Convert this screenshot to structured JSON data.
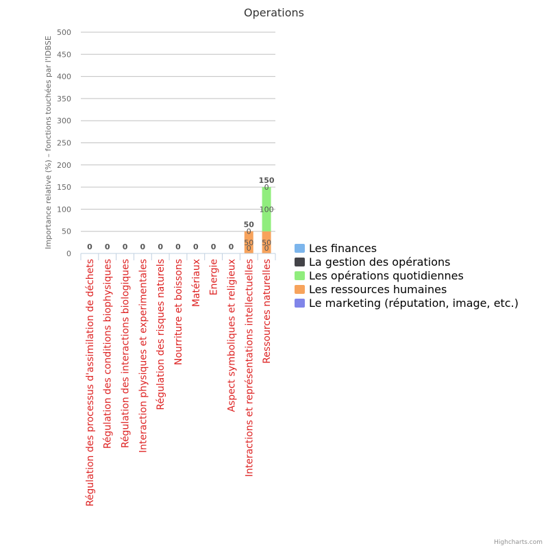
{
  "chart_data": {
    "type": "bar",
    "stacked": true,
    "title": "Operations",
    "xlabel": "",
    "ylabel": "Importance relative (%) – fonctions touchées par l'IDBSE",
    "ylim": [
      0,
      500
    ],
    "yticks": [
      "0",
      "50",
      "100",
      "150",
      "200",
      "250",
      "300",
      "350",
      "400",
      "450",
      "500"
    ],
    "ytick_values": [
      0,
      50,
      100,
      150,
      200,
      250,
      300,
      350,
      400,
      450,
      500
    ],
    "grid": true,
    "legend_position": "right",
    "categories": [
      "Régulation des processus d'assimilation de déchets",
      "Régulation des conditions biophysiques",
      "Régulation des interactions biologiques",
      "Interaction physiques et experimentales",
      "Régulation des risques naturels",
      "Nourriture et boissons",
      "Matériaux",
      "Energie",
      "Aspect symboliques et religieux",
      "Interactions et représentations intellectuelles",
      "Ressources naturelles"
    ],
    "series": [
      {
        "name": "Les finances",
        "color": "#7cb5ec",
        "values": [
          0,
          0,
          0,
          0,
          0,
          0,
          0,
          0,
          0,
          0,
          0
        ]
      },
      {
        "name": "La gestion des opérations",
        "color": "#434348",
        "values": [
          0,
          0,
          0,
          0,
          0,
          0,
          0,
          0,
          0,
          0,
          0
        ]
      },
      {
        "name": "Les opérations quotidiennes",
        "color": "#90ed7d",
        "values": [
          0,
          0,
          0,
          0,
          0,
          0,
          0,
          0,
          0,
          0,
          100
        ]
      },
      {
        "name": "Les ressources humaines",
        "color": "#f7a35c",
        "values": [
          0,
          0,
          0,
          0,
          0,
          0,
          0,
          0,
          0,
          50,
          50
        ]
      },
      {
        "name": "Le marketing (réputation, image, etc.)",
        "color": "#8085e9",
        "values": [
          0,
          0,
          0,
          0,
          0,
          0,
          0,
          0,
          0,
          0,
          0
        ]
      }
    ],
    "stack_totals": [
      "0",
      "0",
      "0",
      "0",
      "0",
      "0",
      "0",
      "0",
      "0",
      "50",
      "150"
    ]
  },
  "credits": "Highcharts.com"
}
